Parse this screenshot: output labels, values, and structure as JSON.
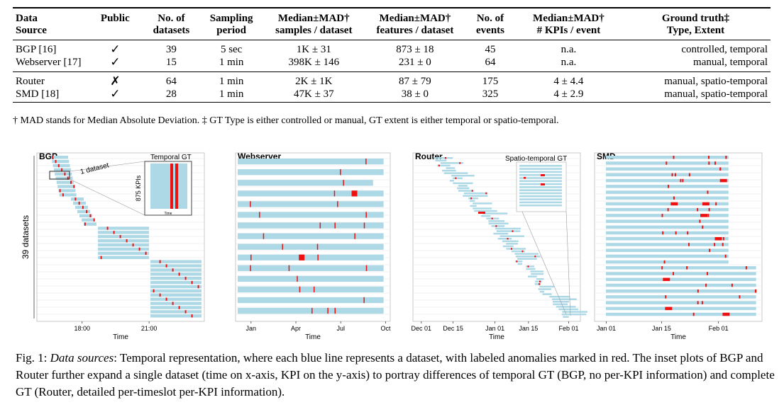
{
  "table": {
    "headers": [
      [
        "Data",
        "Source"
      ],
      [
        "Public"
      ],
      [
        "No. of",
        "datasets"
      ],
      [
        "Sampling",
        "period"
      ],
      [
        "Median±MAD†",
        "samples / dataset"
      ],
      [
        "Median±MAD†",
        "features / dataset"
      ],
      [
        "No. of",
        "events"
      ],
      [
        "Median±MAD†",
        "# KPIs / event"
      ],
      [
        "Ground truth‡",
        "Type, Extent"
      ]
    ],
    "groups": [
      [
        [
          "BGP [16]",
          "✓",
          "39",
          "5 sec",
          "1K ± 31",
          "873 ± 18",
          "45",
          "n.a.",
          "controlled, temporal"
        ],
        [
          "Webserver [17]",
          "✓",
          "15",
          "1 min",
          "398K ± 146",
          "231 ± 0",
          "64",
          "n.a.",
          "manual, temporal"
        ]
      ],
      [
        [
          "Router",
          "✗",
          "64",
          "1 min",
          "2K ± 1K",
          "87 ± 79",
          "175",
          "4 ± 4.4",
          "manual, spatio-temporal"
        ],
        [
          "SMD [18]",
          "✓",
          "28",
          "1 min",
          "47K ± 37",
          "38 ± 0",
          "325",
          "4 ± 2.9",
          "manual, spatio-temporal"
        ]
      ]
    ],
    "footnote": "† MAD stands for Median Absolute Deviation. ‡ GT Type is either controlled or manual, GT extent is either temporal or spatio-temporal."
  },
  "figure": {
    "panels": [
      {
        "key": "bgp",
        "title": "BGP",
        "xticks": [
          "18:00",
          "21:00"
        ],
        "xlabel": "Time",
        "ylabel": "39 datasets",
        "inset_title": "Temporal GT",
        "inset_ylabel": "875 KPIs",
        "inset_xlabel": "Time",
        "annotation": "1 dataset"
      },
      {
        "key": "webserver",
        "title": "Webserver",
        "xticks": [
          "Jan",
          "Apr",
          "Jul",
          "Oct"
        ],
        "xlabel": "Time"
      },
      {
        "key": "router",
        "title": "Router",
        "xticks": [
          "Dec 01",
          "Dec 15",
          "Jan 01",
          "Jan 15",
          "Feb 01"
        ],
        "xlabel": "Time",
        "inset_title": "Spatio-temporal GT"
      },
      {
        "key": "smd",
        "title": "SMD",
        "xticks": [
          "Jan 01",
          "Jan 15",
          "Feb 01"
        ],
        "xlabel": "Time"
      }
    ],
    "colors": {
      "dataset": "#add8e6",
      "anomaly": "#ee1111",
      "panel_bg": "#ffffff",
      "grid": "#e6e6e6"
    }
  },
  "caption": {
    "label": "Fig. 1: ",
    "lead": "Data sources",
    "body": ": Temporal representation, where each blue line represents a dataset, with labeled anomalies marked in red. The inset plots of BGP and Router further expand a single dataset (time on x-axis, KPI on the y-axis) to portray differences of temporal GT (BGP, no per-KPI information) and complete GT (Router, detailed per-timeslot per-KPI information)."
  }
}
